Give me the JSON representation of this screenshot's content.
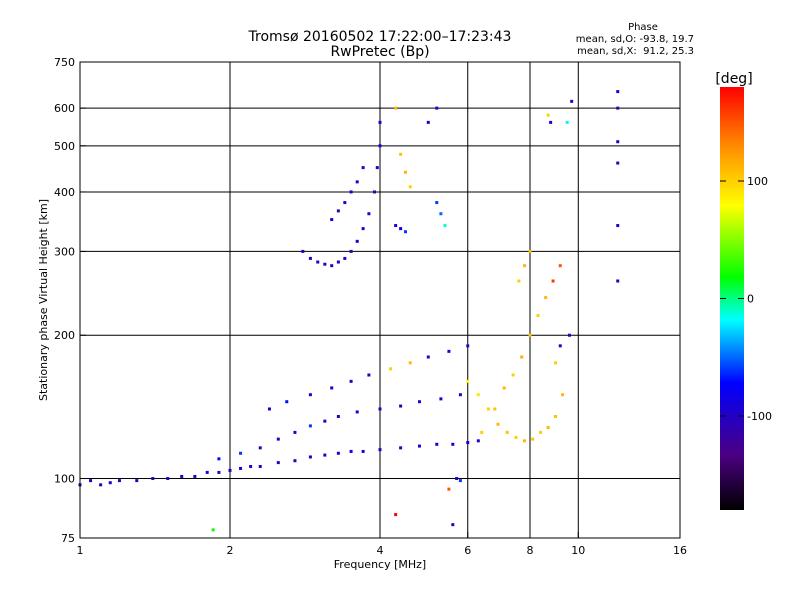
{
  "chart_data": {
    "type": "scatter",
    "title": "Tromsø 20160502 17:22:00–17:23:43",
    "subtitle": "RwPretec (Bp)",
    "xlabel": "Frequency [MHz]",
    "ylabel": "Stationary phase Virtual Height [km]",
    "x_scale": "log",
    "y_scale": "log",
    "xlim": [
      1,
      16
    ],
    "ylim": [
      75,
      750
    ],
    "x_ticks": [
      1,
      2,
      4,
      6,
      8,
      10,
      16
    ],
    "y_ticks": [
      75,
      100,
      200,
      300,
      400,
      500,
      600,
      750
    ],
    "x_tick_labels": [
      "1",
      "2",
      "4",
      "6",
      "8",
      "10",
      "16"
    ],
    "y_tick_labels": [
      "75",
      "100",
      "200",
      "300",
      "400",
      "500",
      "600",
      "750"
    ],
    "x_grid": [
      2,
      4,
      6,
      8,
      10
    ],
    "y_grid": [
      100,
      200,
      300,
      400,
      500,
      600
    ],
    "grid": true,
    "phase_stats": {
      "heading": "Phase",
      "line_o": "mean, sd,O: -93.8, 19.7",
      "line_x": "mean, sd,X:  91.2, 25.3"
    },
    "colorbar": {
      "label": "[deg]",
      "range": [
        -180,
        180
      ],
      "ticks": [
        100,
        0,
        -100
      ],
      "tick_labels": [
        "100",
        "0",
        "-100"
      ],
      "palette": "rainbow (black-purple-blue-cyan-green-yellow-orange-red)"
    },
    "series": [
      {
        "values": [
          [
            1.0,
            97,
            -105
          ],
          [
            1.05,
            99,
            -95
          ],
          [
            1.1,
            97,
            -110
          ],
          [
            1.15,
            98,
            -100
          ],
          [
            1.2,
            99,
            -105
          ],
          [
            1.3,
            99,
            -98
          ],
          [
            1.4,
            100,
            -110
          ],
          [
            1.5,
            100,
            -105
          ],
          [
            1.6,
            101,
            -102
          ],
          [
            1.7,
            101,
            -100
          ],
          [
            1.8,
            103,
            -95
          ],
          [
            1.9,
            103,
            -105
          ],
          [
            2.0,
            104,
            -100
          ],
          [
            2.1,
            105,
            -100
          ],
          [
            2.2,
            106,
            -98
          ],
          [
            2.3,
            106,
            -104
          ],
          [
            2.5,
            108,
            -100
          ],
          [
            2.7,
            109,
            -110
          ],
          [
            2.9,
            111,
            -102
          ],
          [
            3.1,
            112,
            -105
          ],
          [
            3.3,
            113,
            -100
          ],
          [
            3.5,
            114,
            -90
          ],
          [
            3.7,
            114,
            -98
          ],
          [
            4.0,
            115,
            -105
          ],
          [
            4.4,
            116,
            -100
          ],
          [
            4.8,
            117,
            -95
          ],
          [
            5.2,
            118,
            -98
          ],
          [
            5.6,
            118,
            -90
          ],
          [
            6.0,
            119,
            -85
          ],
          [
            6.3,
            120,
            -95
          ],
          [
            1.9,
            110,
            -70
          ],
          [
            2.1,
            113,
            -60
          ],
          [
            2.3,
            116,
            -100
          ],
          [
            2.5,
            121,
            -100
          ],
          [
            2.7,
            125,
            -98
          ],
          [
            2.9,
            129,
            -60
          ],
          [
            3.1,
            132,
            -104
          ],
          [
            3.3,
            135,
            -100
          ],
          [
            3.6,
            138,
            -95
          ],
          [
            4.0,
            140,
            -105
          ],
          [
            4.4,
            142,
            -100
          ],
          [
            4.8,
            145,
            -98
          ],
          [
            5.3,
            147,
            -95
          ],
          [
            5.8,
            150,
            -100
          ],
          [
            2.4,
            140,
            -100
          ],
          [
            2.6,
            145,
            -70
          ],
          [
            2.9,
            150,
            -98
          ],
          [
            3.2,
            155,
            -100
          ],
          [
            3.5,
            160,
            -104
          ],
          [
            3.8,
            165,
            -100
          ],
          [
            4.2,
            170,
            100
          ],
          [
            4.6,
            175,
            110
          ],
          [
            5.0,
            180,
            -100
          ],
          [
            5.5,
            185,
            -95
          ],
          [
            6.0,
            190,
            -100
          ],
          [
            2.8,
            300,
            -100
          ],
          [
            2.9,
            290,
            -105
          ],
          [
            3.0,
            285,
            -100
          ],
          [
            3.1,
            282,
            -98
          ],
          [
            3.2,
            280,
            -110
          ],
          [
            3.3,
            285,
            -100
          ],
          [
            3.4,
            290,
            -100
          ],
          [
            3.5,
            300,
            -105
          ],
          [
            3.6,
            315,
            -100
          ],
          [
            3.7,
            335,
            -95
          ],
          [
            3.8,
            360,
            -100
          ],
          [
            3.9,
            400,
            -105
          ],
          [
            3.95,
            450,
            -100
          ],
          [
            4.0,
            500,
            -98
          ],
          [
            4.0,
            560,
            -100
          ],
          [
            3.2,
            350,
            -100
          ],
          [
            3.3,
            365,
            -105
          ],
          [
            3.4,
            380,
            -100
          ],
          [
            3.5,
            400,
            -100
          ],
          [
            3.6,
            420,
            -98
          ],
          [
            3.7,
            450,
            -110
          ],
          [
            4.3,
            340,
            -100
          ],
          [
            4.4,
            335,
            -80
          ],
          [
            4.5,
            330,
            -60
          ],
          [
            4.6,
            410,
            100
          ],
          [
            4.5,
            440,
            110
          ],
          [
            4.4,
            480,
            105
          ],
          [
            4.3,
            600,
            110
          ],
          [
            5.2,
            380,
            -60
          ],
          [
            5.3,
            360,
            -50
          ],
          [
            5.4,
            340,
            -10
          ],
          [
            5.2,
            600,
            -100
          ],
          [
            5.0,
            560,
            -100
          ],
          [
            6.0,
            160,
            80
          ],
          [
            6.3,
            150,
            90
          ],
          [
            6.6,
            140,
            100
          ],
          [
            6.9,
            130,
            110
          ],
          [
            7.2,
            125,
            105
          ],
          [
            7.5,
            122,
            100
          ],
          [
            7.8,
            120,
            110
          ],
          [
            8.1,
            121,
            105
          ],
          [
            8.4,
            125,
            100
          ],
          [
            8.7,
            128,
            110
          ],
          [
            9.0,
            135,
            105
          ],
          [
            6.4,
            125,
            100
          ],
          [
            6.8,
            140,
            105
          ],
          [
            7.1,
            155,
            110
          ],
          [
            7.4,
            165,
            100
          ],
          [
            7.7,
            180,
            115
          ],
          [
            8.0,
            200,
            105
          ],
          [
            8.3,
            220,
            100
          ],
          [
            8.6,
            240,
            110
          ],
          [
            8.9,
            260,
            160
          ],
          [
            9.2,
            280,
            150
          ],
          [
            7.6,
            260,
            100
          ],
          [
            7.8,
            280,
            110
          ],
          [
            8.0,
            300,
            105
          ],
          [
            8.7,
            580,
            100
          ],
          [
            8.8,
            560,
            -100
          ],
          [
            9.5,
            560,
            -20
          ],
          [
            9.7,
            620,
            -100
          ],
          [
            12.0,
            650,
            -100
          ],
          [
            12.0,
            600,
            -110
          ],
          [
            12.0,
            510,
            -100
          ],
          [
            12.0,
            460,
            -110
          ],
          [
            12.0,
            340,
            -100
          ],
          [
            12.0,
            260,
            -105
          ],
          [
            9.6,
            200,
            -100
          ],
          [
            9.2,
            190,
            -100
          ],
          [
            9.0,
            175,
            100
          ],
          [
            9.3,
            150,
            110
          ],
          [
            5.5,
            95,
            150
          ],
          [
            5.8,
            99,
            -60
          ],
          [
            5.7,
            100,
            -100
          ],
          [
            1.85,
            78,
            20
          ],
          [
            4.3,
            84,
            180
          ],
          [
            5.6,
            80,
            -100
          ]
        ]
      }
    ],
    "point_encoding": "[frequency_MHz, virtual_height_km, phase_deg]"
  }
}
